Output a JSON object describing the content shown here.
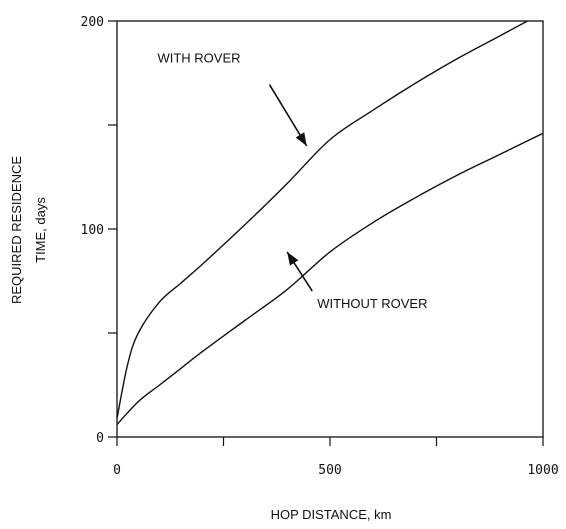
{
  "chart_data": {
    "type": "line",
    "title": "",
    "xlabel": "HOP DISTANCE, km",
    "ylabel_line1": "REQUIRED RESIDENCE",
    "ylabel_line2": "TIME, days",
    "xlim": [
      0,
      1000
    ],
    "ylim": [
      0,
      200
    ],
    "x_ticks": [
      0,
      250,
      500,
      750,
      1000
    ],
    "x_tick_labels": [
      "0",
      "",
      "500",
      "",
      "1000"
    ],
    "y_ticks": [
      0,
      50,
      100,
      150,
      200
    ],
    "y_tick_labels": [
      "0",
      "",
      "100",
      "",
      "200"
    ],
    "grid": false,
    "series": [
      {
        "name": "WITH ROVER",
        "x": [
          0,
          25,
          50,
          100,
          150,
          200,
          300,
          400,
          500,
          600,
          700,
          800,
          900,
          1000
        ],
        "y": [
          9,
          35,
          50,
          65,
          74,
          83,
          102,
          122,
          143,
          157,
          170,
          182,
          193,
          204
        ]
      },
      {
        "name": "WITHOUT ROVER",
        "x": [
          0,
          50,
          100,
          150,
          200,
          300,
          400,
          500,
          600,
          700,
          800,
          900,
          1000
        ],
        "y": [
          6,
          17,
          25,
          33,
          41,
          56,
          71,
          89,
          103,
          115,
          126,
          136,
          146
        ]
      }
    ],
    "annotations": [
      {
        "text": "WITH ROVER",
        "label_at": [
          95,
          180
        ],
        "points_to": [
          450,
          138
        ]
      },
      {
        "text": "WITHOUT ROVER",
        "label_at": [
          470,
          62
        ],
        "points_to": [
          390,
          88
        ]
      }
    ]
  }
}
